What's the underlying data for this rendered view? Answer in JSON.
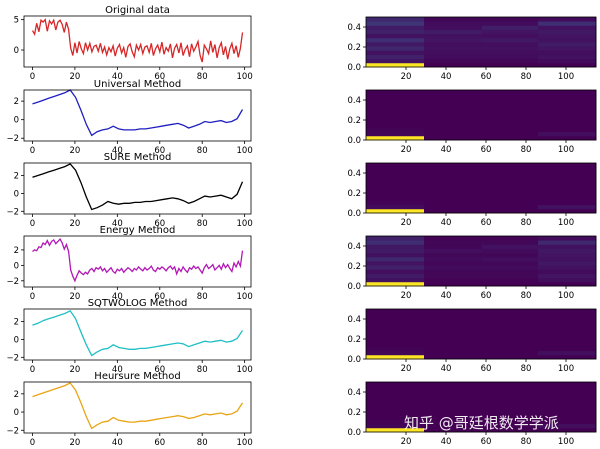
{
  "watermark": "知乎 @哥廷根数学学派",
  "chart_data": [
    {
      "type": "line",
      "title": "Original data",
      "color": "#d62728",
      "xlim": [
        -4,
        103
      ],
      "ylim": [
        -2.8,
        5.6
      ],
      "xticks": [
        0,
        20,
        40,
        60,
        80,
        100
      ],
      "yticks": [
        -5,
        0,
        5
      ],
      "ytick_labels": [
        "",
        "0",
        "5"
      ],
      "series": [
        {
          "values": [
            3.2,
            2.6,
            4.4,
            3.0,
            4.9,
            4.6,
            5.0,
            3.1,
            4.8,
            4.3,
            4.9,
            3.3,
            4.6,
            4.9,
            4.2,
            2.9,
            4.6,
            3.4,
            0.3,
            -0.9,
            1.2,
            -0.5,
            1.4,
            0.2,
            -0.6,
            1.2,
            0.0,
            1.1,
            -0.3,
            0.6,
            0.8,
            -0.2,
            1.1,
            -0.4,
            0.5,
            -0.8,
            0.4,
            -0.3,
            0.7,
            -1.0,
            0.3,
            0.9,
            -0.5,
            0.4,
            -1.2,
            0.6,
            1.0,
            -0.3,
            -1.1,
            0.8,
            0.0,
            0.9,
            -0.6,
            0.5,
            0.7,
            -0.4,
            1.1,
            -0.9,
            0.2,
            0.8,
            -0.3,
            1.3,
            -0.7,
            0.4,
            -0.2,
            1.0,
            -1.3,
            0.3,
            0.9,
            -0.5,
            1.2,
            -0.9,
            0.1,
            0.7,
            -1.1,
            1.0,
            -0.2,
            0.5,
            1.4,
            -0.9,
            -2.0,
            0.8,
            0.2,
            -0.6,
            1.5,
            -0.4,
            0.9,
            -1.3,
            0.4,
            1.2,
            -0.8,
            0.6,
            -1.5,
            0.2,
            1.1,
            -0.6,
            0.7,
            -1.2,
            0.3,
            2.9
          ]
        }
      ]
    },
    {
      "type": "line",
      "title": "Universal Method",
      "color": "#1f1fbf",
      "xlim": [
        -4,
        103
      ],
      "ylim": [
        -2.3,
        3.2
      ],
      "xticks": [
        0,
        20,
        40,
        60,
        80,
        100
      ],
      "yticks": [
        -2,
        0,
        2
      ],
      "ytick_labels": [
        "−2",
        "0",
        "2"
      ],
      "series": [
        {
          "values": [
            1.7,
            1.9,
            2.1,
            2.3,
            2.5,
            2.7,
            2.9,
            3.2,
            2.4,
            1.0,
            -0.5,
            -1.7,
            -1.3,
            -1.1,
            -1.0,
            -0.7,
            -1.0,
            -1.1,
            -1.1,
            -1.1,
            -1.0,
            -1.0,
            -0.9,
            -0.8,
            -0.7,
            -0.6,
            -0.5,
            -0.4,
            -0.6,
            -0.9,
            -0.7,
            -0.5,
            -0.2,
            -0.3,
            -0.2,
            -0.1,
            -0.3,
            -0.2,
            0.1,
            1.1
          ]
        }
      ]
    },
    {
      "type": "line",
      "title": "SURE Method",
      "color": "#000000",
      "xlim": [
        -4,
        103
      ],
      "ylim": [
        -2.3,
        3.4
      ],
      "xticks": [
        0,
        20,
        40,
        60,
        80,
        100
      ],
      "yticks": [
        -2,
        0,
        2
      ],
      "ytick_labels": [
        "−2",
        "0",
        "2"
      ],
      "series": [
        {
          "values": [
            1.8,
            2.0,
            2.2,
            2.4,
            2.6,
            2.8,
            3.0,
            3.3,
            2.6,
            1.2,
            -0.4,
            -1.8,
            -1.6,
            -1.3,
            -0.9,
            -1.1,
            -1.2,
            -1.1,
            -1.1,
            -1.0,
            -1.0,
            -0.9,
            -0.9,
            -0.8,
            -0.7,
            -0.6,
            -0.5,
            -0.6,
            -0.8,
            -1.1,
            -0.9,
            -0.6,
            -0.3,
            -0.4,
            -0.3,
            -0.2,
            -0.4,
            -0.6,
            -0.1,
            1.3
          ]
        }
      ]
    },
    {
      "type": "line",
      "title": "Energy Method",
      "color": "#b118b5",
      "xlim": [
        -4,
        103
      ],
      "ylim": [
        -2.8,
        3.8
      ],
      "xticks": [
        0,
        20,
        40,
        60,
        80,
        100
      ],
      "yticks": [
        -2,
        0,
        2
      ],
      "ytick_labels": [
        "−2",
        "0",
        "2"
      ],
      "series": [
        {
          "values": [
            1.8,
            2.0,
            1.9,
            2.4,
            2.3,
            2.9,
            2.7,
            3.2,
            2.6,
            3.1,
            3.3,
            2.8,
            3.1,
            3.4,
            2.9,
            2.1,
            2.7,
            1.8,
            -0.6,
            -1.4,
            -2.0,
            -1.3,
            -0.7,
            -1.0,
            -1.2,
            -0.9,
            -1.1,
            -0.6,
            -0.4,
            -0.8,
            -0.3,
            -0.5,
            -0.2,
            -0.7,
            -0.4,
            -0.9,
            -0.6,
            -0.3,
            -0.8,
            -1.0,
            -0.5,
            -0.7,
            -0.4,
            -0.9,
            -0.6,
            -0.3,
            -0.5,
            -0.8,
            -0.4,
            -0.6,
            -0.2,
            -0.5,
            -0.7,
            -0.3,
            -0.6,
            -0.4,
            -0.1,
            -0.6,
            -0.8,
            -0.3,
            -0.5,
            -0.2,
            -0.4,
            -0.7,
            -0.3,
            -0.1,
            -0.5,
            -0.2,
            -1.1,
            -0.4,
            -0.8,
            -0.2,
            -0.6,
            -0.9,
            -0.3,
            -0.5,
            -0.1,
            -0.4,
            -0.2,
            -0.6,
            -1.0,
            -0.3,
            0.1,
            -0.4,
            -0.2,
            0.1,
            -0.6,
            -0.3,
            0.0,
            -0.5,
            0.2,
            -0.3,
            0.1,
            -0.4,
            -0.8,
            0.3,
            -0.2,
            0.5,
            -0.1,
            1.9
          ]
        }
      ]
    },
    {
      "type": "line",
      "title": "SQTWOLOG Method",
      "color": "#20bfc4",
      "xlim": [
        -4,
        103
      ],
      "ylim": [
        -2.3,
        3.4
      ],
      "xticks": [
        0,
        20,
        40,
        60,
        80,
        100
      ],
      "yticks": [
        -2,
        0,
        2
      ],
      "ytick_labels": [
        "−2",
        "0",
        "2"
      ],
      "series": [
        {
          "values": [
            1.6,
            1.8,
            2.1,
            2.3,
            2.5,
            2.7,
            2.9,
            3.2,
            2.3,
            0.8,
            -0.6,
            -1.8,
            -1.4,
            -1.1,
            -1.0,
            -0.6,
            -0.9,
            -1.0,
            -1.1,
            -1.1,
            -1.0,
            -1.0,
            -0.9,
            -0.8,
            -0.7,
            -0.6,
            -0.5,
            -0.4,
            -0.5,
            -0.8,
            -0.6,
            -0.4,
            -0.2,
            -0.3,
            -0.2,
            -0.1,
            -0.3,
            -0.2,
            0.1,
            1.0
          ]
        }
      ]
    },
    {
      "type": "line",
      "title": "Heursure Method",
      "color": "#e8a514",
      "xlim": [
        -4,
        103
      ],
      "ylim": [
        -2.3,
        3.3
      ],
      "xticks": [
        0,
        20,
        40,
        60,
        80,
        100
      ],
      "yticks": [
        -2,
        0,
        2
      ],
      "ytick_labels": [
        "−2",
        "0",
        "2"
      ],
      "series": [
        {
          "values": [
            1.7,
            1.9,
            2.1,
            2.3,
            2.5,
            2.7,
            2.9,
            3.2,
            2.4,
            1.0,
            -0.5,
            -1.8,
            -1.4,
            -1.1,
            -1.0,
            -0.6,
            -0.9,
            -1.0,
            -1.1,
            -1.1,
            -1.0,
            -1.0,
            -0.9,
            -0.8,
            -0.7,
            -0.6,
            -0.5,
            -0.4,
            -0.5,
            -0.7,
            -0.6,
            -0.4,
            -0.2,
            -0.3,
            -0.2,
            -0.1,
            -0.3,
            -0.2,
            0.1,
            1.0
          ]
        }
      ]
    },
    {
      "type": "heatmap",
      "xlim": [
        0,
        115
      ],
      "ylim": [
        0,
        0.5
      ],
      "xticks": [
        20,
        40,
        60,
        80,
        100
      ],
      "yticks": [
        0.0,
        0.1,
        0.2,
        0.3,
        0.4
      ],
      "ytick_labels": [
        "0.0",
        "0.2",
        "0.4"
      ],
      "ytick_values": [
        0.0,
        0.2,
        0.4
      ],
      "rows": 12,
      "blocks": [
        {
          "x0": 0,
          "x1": 29,
          "values": [
            1.0,
            0.06,
            0.1,
            0.05,
            0.12,
            0.07,
            0.14,
            0.05,
            0.1,
            0.08,
            0.16,
            0.12
          ]
        },
        {
          "x0": 29,
          "x1": 58,
          "values": [
            0.0,
            0.02,
            0.03,
            0.04,
            0.05,
            0.04,
            0.06,
            0.05,
            0.08,
            0.04,
            0.03,
            0.02
          ]
        },
        {
          "x0": 58,
          "x1": 86,
          "values": [
            0.0,
            0.02,
            0.03,
            0.04,
            0.05,
            0.04,
            0.07,
            0.04,
            0.06,
            0.09,
            0.03,
            0.02
          ]
        },
        {
          "x0": 86,
          "x1": 115,
          "values": [
            0.0,
            0.03,
            0.05,
            0.04,
            0.06,
            0.08,
            0.05,
            0.06,
            0.07,
            0.05,
            0.14,
            0.03
          ]
        }
      ]
    },
    {
      "type": "heatmap",
      "xlim": [
        0,
        115
      ],
      "ylim": [
        0,
        0.5
      ],
      "xticks": [
        20,
        40,
        60,
        80,
        100
      ],
      "ytick_labels": [
        "0.0",
        "0.2",
        "0.4"
      ],
      "ytick_values": [
        0.0,
        0.2,
        0.4
      ],
      "rows": 12,
      "blocks": [
        {
          "x0": 0,
          "x1": 29,
          "values": [
            1.0,
            0.02,
            0.01,
            0,
            0,
            0,
            0,
            0,
            0,
            0,
            0,
            0
          ]
        },
        {
          "x0": 29,
          "x1": 58,
          "values": [
            0,
            0,
            0,
            0,
            0,
            0,
            0,
            0,
            0,
            0,
            0,
            0
          ]
        },
        {
          "x0": 58,
          "x1": 86,
          "values": [
            0,
            0,
            0,
            0,
            0,
            0,
            0,
            0,
            0,
            0,
            0,
            0
          ]
        },
        {
          "x0": 86,
          "x1": 115,
          "values": [
            0,
            0.04,
            0,
            0,
            0,
            0,
            0,
            0,
            0,
            0,
            0,
            0
          ]
        }
      ]
    },
    {
      "type": "heatmap",
      "xlim": [
        0,
        115
      ],
      "ylim": [
        0,
        0.5
      ],
      "xticks": [
        20,
        40,
        60,
        80,
        100
      ],
      "ytick_labels": [
        "0.0",
        "0.2",
        "0.4"
      ],
      "ytick_values": [
        0.0,
        0.2,
        0.4
      ],
      "rows": 12,
      "blocks": [
        {
          "x0": 0,
          "x1": 29,
          "values": [
            1.0,
            0.03,
            0.01,
            0,
            0,
            0,
            0,
            0,
            0,
            0,
            0,
            0
          ]
        },
        {
          "x0": 29,
          "x1": 58,
          "values": [
            0,
            0,
            0,
            0,
            0,
            0,
            0,
            0,
            0,
            0,
            0,
            0
          ]
        },
        {
          "x0": 58,
          "x1": 86,
          "values": [
            0,
            0,
            0,
            0,
            0,
            0,
            0,
            0,
            0,
            0,
            0,
            0
          ]
        },
        {
          "x0": 86,
          "x1": 115,
          "values": [
            0,
            0.05,
            0,
            0,
            0,
            0,
            0,
            0,
            0,
            0,
            0,
            0
          ]
        }
      ]
    },
    {
      "type": "heatmap",
      "xlim": [
        0,
        115
      ],
      "ylim": [
        0,
        0.5
      ],
      "xticks": [
        20,
        40,
        60,
        80,
        100
      ],
      "ytick_labels": [
        "0.0",
        "0.2",
        "0.4"
      ],
      "ytick_values": [
        0.0,
        0.2,
        0.4
      ],
      "rows": 12,
      "blocks": [
        {
          "x0": 0,
          "x1": 29,
          "values": [
            1.0,
            0.05,
            0.08,
            0.04,
            0.1,
            0.06,
            0.12,
            0.05,
            0.08,
            0.07,
            0.14,
            0.1
          ]
        },
        {
          "x0": 29,
          "x1": 58,
          "values": [
            0,
            0.01,
            0.02,
            0.02,
            0.03,
            0.02,
            0.03,
            0.02,
            0.04,
            0.02,
            0.02,
            0.01
          ]
        },
        {
          "x0": 58,
          "x1": 86,
          "values": [
            0,
            0.01,
            0.02,
            0.02,
            0.03,
            0.02,
            0.04,
            0.02,
            0.03,
            0.05,
            0.02,
            0.01
          ]
        },
        {
          "x0": 86,
          "x1": 115,
          "values": [
            0,
            0.04,
            0.06,
            0.03,
            0.05,
            0.07,
            0.05,
            0.06,
            0.07,
            0.05,
            0.12,
            0.03
          ]
        }
      ]
    },
    {
      "type": "heatmap",
      "xlim": [
        0,
        115
      ],
      "ylim": [
        0,
        0.5
      ],
      "xticks": [
        20,
        40,
        60,
        80,
        100
      ],
      "ytick_labels": [
        "0.0",
        "0.2",
        "0.4"
      ],
      "ytick_values": [
        0.0,
        0.2,
        0.4
      ],
      "rows": 12,
      "blocks": [
        {
          "x0": 0,
          "x1": 29,
          "values": [
            1.0,
            0.02,
            0.01,
            0,
            0,
            0,
            0,
            0,
            0,
            0,
            0,
            0
          ]
        },
        {
          "x0": 29,
          "x1": 58,
          "values": [
            0,
            0,
            0,
            0,
            0,
            0,
            0,
            0,
            0,
            0,
            0,
            0
          ]
        },
        {
          "x0": 58,
          "x1": 86,
          "values": [
            0,
            0,
            0,
            0,
            0,
            0,
            0,
            0,
            0,
            0,
            0,
            0
          ]
        },
        {
          "x0": 86,
          "x1": 115,
          "values": [
            0,
            0.04,
            0,
            0,
            0,
            0,
            0,
            0,
            0,
            0,
            0,
            0
          ]
        }
      ]
    },
    {
      "type": "heatmap",
      "xlim": [
        0,
        115
      ],
      "ylim": [
        0,
        0.5
      ],
      "xticks": [
        20,
        40,
        60,
        80,
        100
      ],
      "ytick_labels": [
        "0.0",
        "0.2",
        "0.4"
      ],
      "ytick_values": [
        0.0,
        0.2,
        0.4
      ],
      "rows": 12,
      "blocks": [
        {
          "x0": 0,
          "x1": 29,
          "values": [
            1.0,
            0.02,
            0.01,
            0,
            0,
            0,
            0,
            0,
            0,
            0,
            0,
            0
          ]
        },
        {
          "x0": 29,
          "x1": 58,
          "values": [
            0,
            0,
            0,
            0,
            0,
            0,
            0,
            0,
            0,
            0,
            0,
            0
          ]
        },
        {
          "x0": 58,
          "x1": 86,
          "values": [
            0,
            0,
            0,
            0,
            0,
            0,
            0,
            0,
            0,
            0,
            0,
            0
          ]
        },
        {
          "x0": 86,
          "x1": 115,
          "values": [
            0,
            0.04,
            0,
            0,
            0,
            0,
            0,
            0,
            0,
            0,
            0,
            0
          ]
        }
      ]
    }
  ]
}
